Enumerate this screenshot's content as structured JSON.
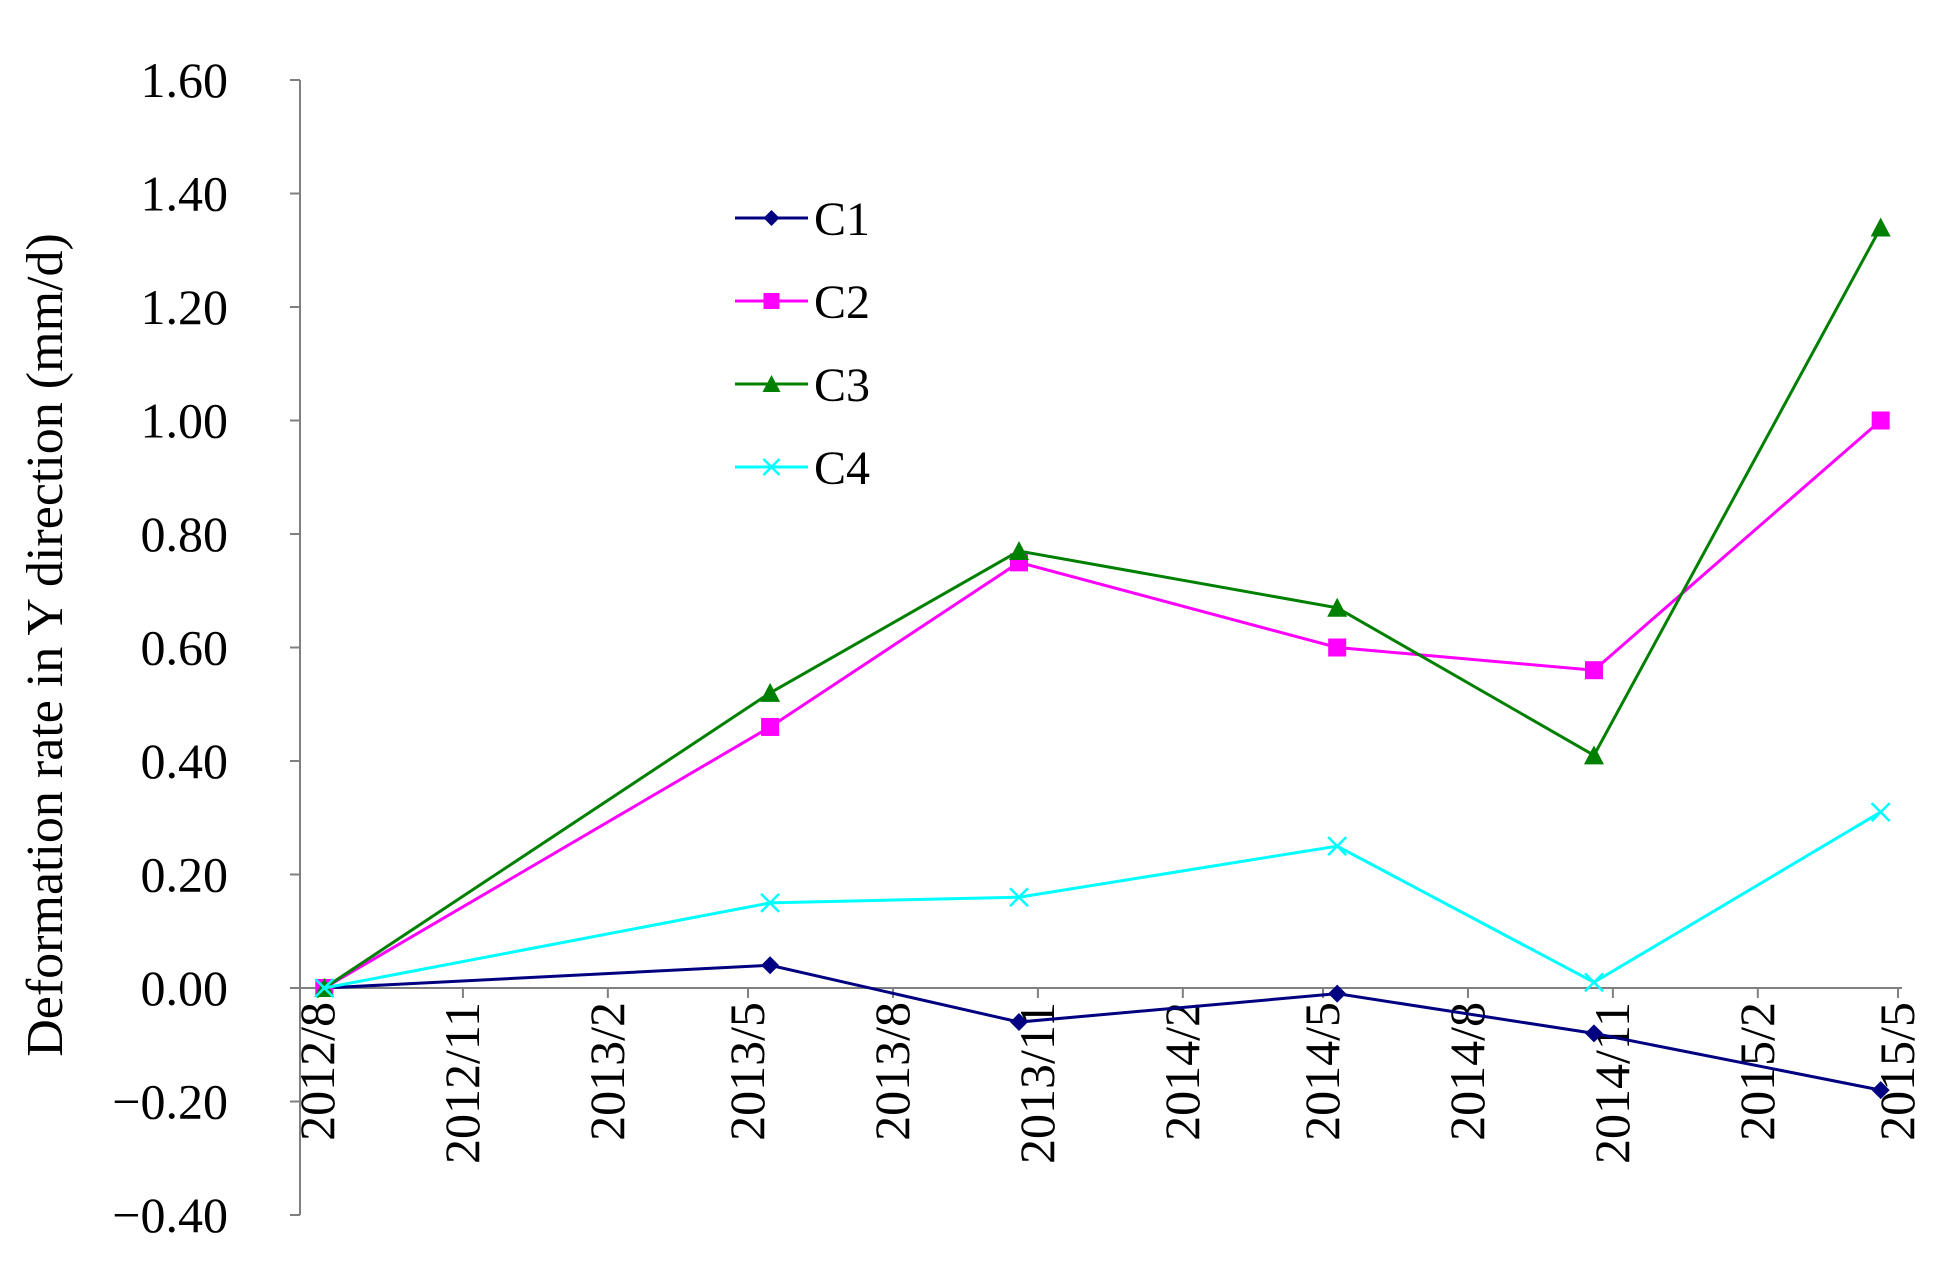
{
  "chart_data": {
    "type": "line",
    "xlabel": "",
    "ylabel": "Deformation rate in Y direction (mm/d)",
    "ylim": [
      -0.4,
      1.6
    ],
    "ytick_labels": [
      "1.60",
      "1.40",
      "1.20",
      "1.00",
      "0.80",
      "0.60",
      "0.40",
      "0.20",
      "0.00",
      "−0.20",
      "−0.40"
    ],
    "x_tick_labels": [
      "2012/8",
      "2012/11",
      "2013/2",
      "2013/5",
      "2013/8",
      "2013/11",
      "2014/2",
      "2014/5",
      "2014/8",
      "2014/11",
      "2015/2",
      "2015/5"
    ],
    "x_ticks": [
      "2012-08-01",
      "2012-11-01",
      "2013-02-01",
      "2013-05-01",
      "2013-08-01",
      "2013-11-01",
      "2014-02-01",
      "2014-05-01",
      "2014-08-01",
      "2014-11-01",
      "2015-02-01",
      "2015-05-01"
    ],
    "x": [
      "2012-08-05",
      "2013-05-15",
      "2013-10-20",
      "2014-05-10",
      "2014-10-20",
      "2015-04-20"
    ],
    "grid": false,
    "legend_position": "top-center",
    "series": [
      {
        "name": "C1",
        "color": "#000080",
        "marker": "diamond",
        "values": [
          0.0,
          0.04,
          -0.06,
          -0.01,
          -0.08,
          -0.18
        ]
      },
      {
        "name": "C2",
        "color": "#FF00FF",
        "marker": "square",
        "values": [
          0.0,
          0.46,
          0.75,
          0.6,
          0.56,
          1.0
        ]
      },
      {
        "name": "C3",
        "color": "#008000",
        "marker": "triangle",
        "values": [
          0.0,
          0.52,
          0.77,
          0.67,
          0.41,
          1.34
        ]
      },
      {
        "name": "C4",
        "color": "#00FFFF",
        "marker": "x",
        "values": [
          0.0,
          0.15,
          0.16,
          0.25,
          0.01,
          0.31
        ]
      }
    ]
  }
}
